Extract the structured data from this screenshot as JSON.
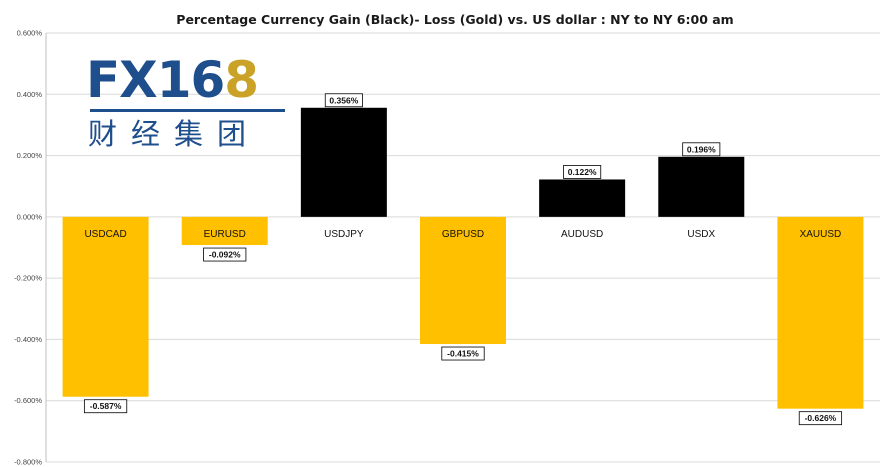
{
  "chart_data": {
    "type": "bar",
    "title": "Percentage Currency  Gain (Black)- Loss (Gold)  vs. US dollar :  NY  to  NY 6:00 am",
    "categories": [
      "USDCAD",
      "EURUSD",
      "USDJPY",
      "GBPUSD",
      "AUDUSD",
      "USDX",
      "XAUUSD"
    ],
    "values": [
      -0.587,
      -0.092,
      0.356,
      -0.415,
      0.122,
      0.196,
      -0.626
    ],
    "data_labels": [
      "-0.587%",
      "-0.092%",
      "0.356%",
      "-0.415%",
      "0.122%",
      "0.196%",
      "-0.626%"
    ],
    "y_ticks": [
      0.6,
      0.4,
      0.2,
      0.0,
      -0.2,
      -0.4,
      -0.6,
      -0.8
    ],
    "y_tick_labels": [
      "0.600%",
      "0.400%",
      "0.200%",
      "0.000%",
      "-0.200%",
      "-0.400%",
      "-0.600%",
      "-0.800%"
    ],
    "ylim": [
      -0.8,
      0.6
    ],
    "grid": true,
    "colors": {
      "gain": "#000000",
      "loss": "#ffc000",
      "grid": "#d9d9d9"
    }
  },
  "logo": {
    "latin_main": "FX16",
    "latin_accent": "8",
    "chinese": "财经集团"
  }
}
